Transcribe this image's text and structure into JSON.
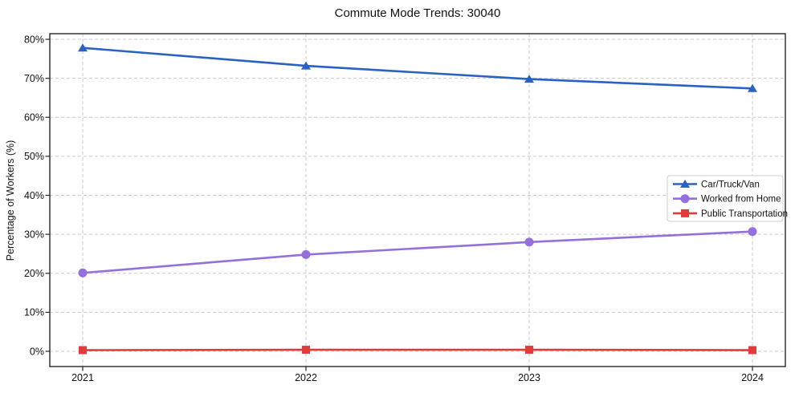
{
  "chart_data": {
    "type": "line",
    "title": "Commute Mode Trends: 30040",
    "xlabel": "",
    "ylabel": "Percentage of Workers (%)",
    "categories": [
      "2021",
      "2022",
      "2023",
      "2024"
    ],
    "series": [
      {
        "name": "Car/Truck/Van",
        "color": "#2a62c2",
        "marker": "triangle",
        "values": [
          77.8,
          73.2,
          69.8,
          67.4
        ]
      },
      {
        "name": "Worked from Home",
        "color": "#9370db",
        "marker": "circle",
        "values": [
          20.1,
          24.8,
          28.0,
          30.7
        ]
      },
      {
        "name": "Public Transportation",
        "color": "#e23b3b",
        "marker": "square",
        "values": [
          0.3,
          0.4,
          0.4,
          0.3
        ]
      }
    ],
    "ylim": [
      0,
      80
    ],
    "ytick_step": 10,
    "ytick_suffix": "%",
    "grid": true,
    "grid_color": "#c9c9c9",
    "axis_color": "#262626",
    "legend_position": "right-middle"
  }
}
